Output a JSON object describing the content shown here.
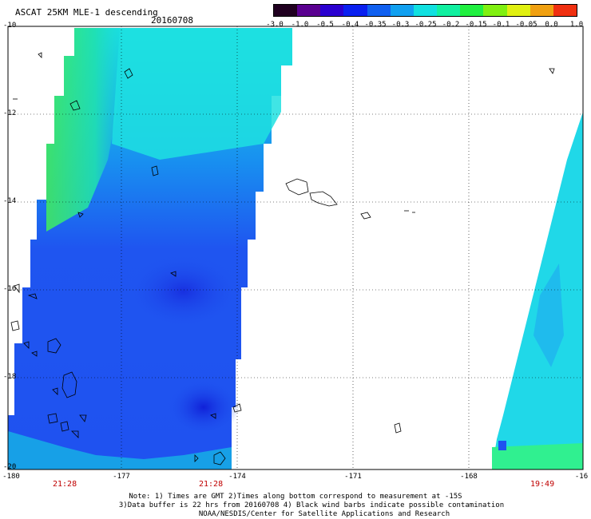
{
  "header": {
    "title": "ASCAT 25KM MLE-1 descending",
    "date": "20160708"
  },
  "colorbar": {
    "labels": [
      "-3.0",
      "-1.0",
      "-0.5",
      "-0.4",
      "-0.35",
      "-0.3",
      "-0.25",
      "-0.2",
      "-0.15",
      "-0.1",
      "-0.05",
      "0.0",
      "1.0"
    ],
    "colors": [
      "#200020",
      "#5a0090",
      "#2a00d0",
      "#0a20f0",
      "#1060f0",
      "#10a0f0",
      "#10e0e0",
      "#10f0a0",
      "#20f040",
      "#80f010",
      "#e0f010",
      "#f0a010",
      "#f03010"
    ]
  },
  "axes": {
    "y_labels": [
      "-10",
      "-12",
      "-14",
      "-16",
      "-18",
      "-20"
    ],
    "x_labels": [
      "-180",
      "-177",
      "-174",
      "-171",
      "-168",
      "-16"
    ],
    "times": [
      "21:28",
      "21:28",
      "19:49"
    ]
  },
  "notes": {
    "line1": "Note: 1) Times are GMT 2)Times along bottom correspond to measurement at -15S",
    "line2": "3)Data buffer is 22 hrs from 20160708 4) Black wind barbs indicate possible contamination",
    "line3": "NOAA/NESDIS/Center for Satellite Applications and Research"
  }
}
